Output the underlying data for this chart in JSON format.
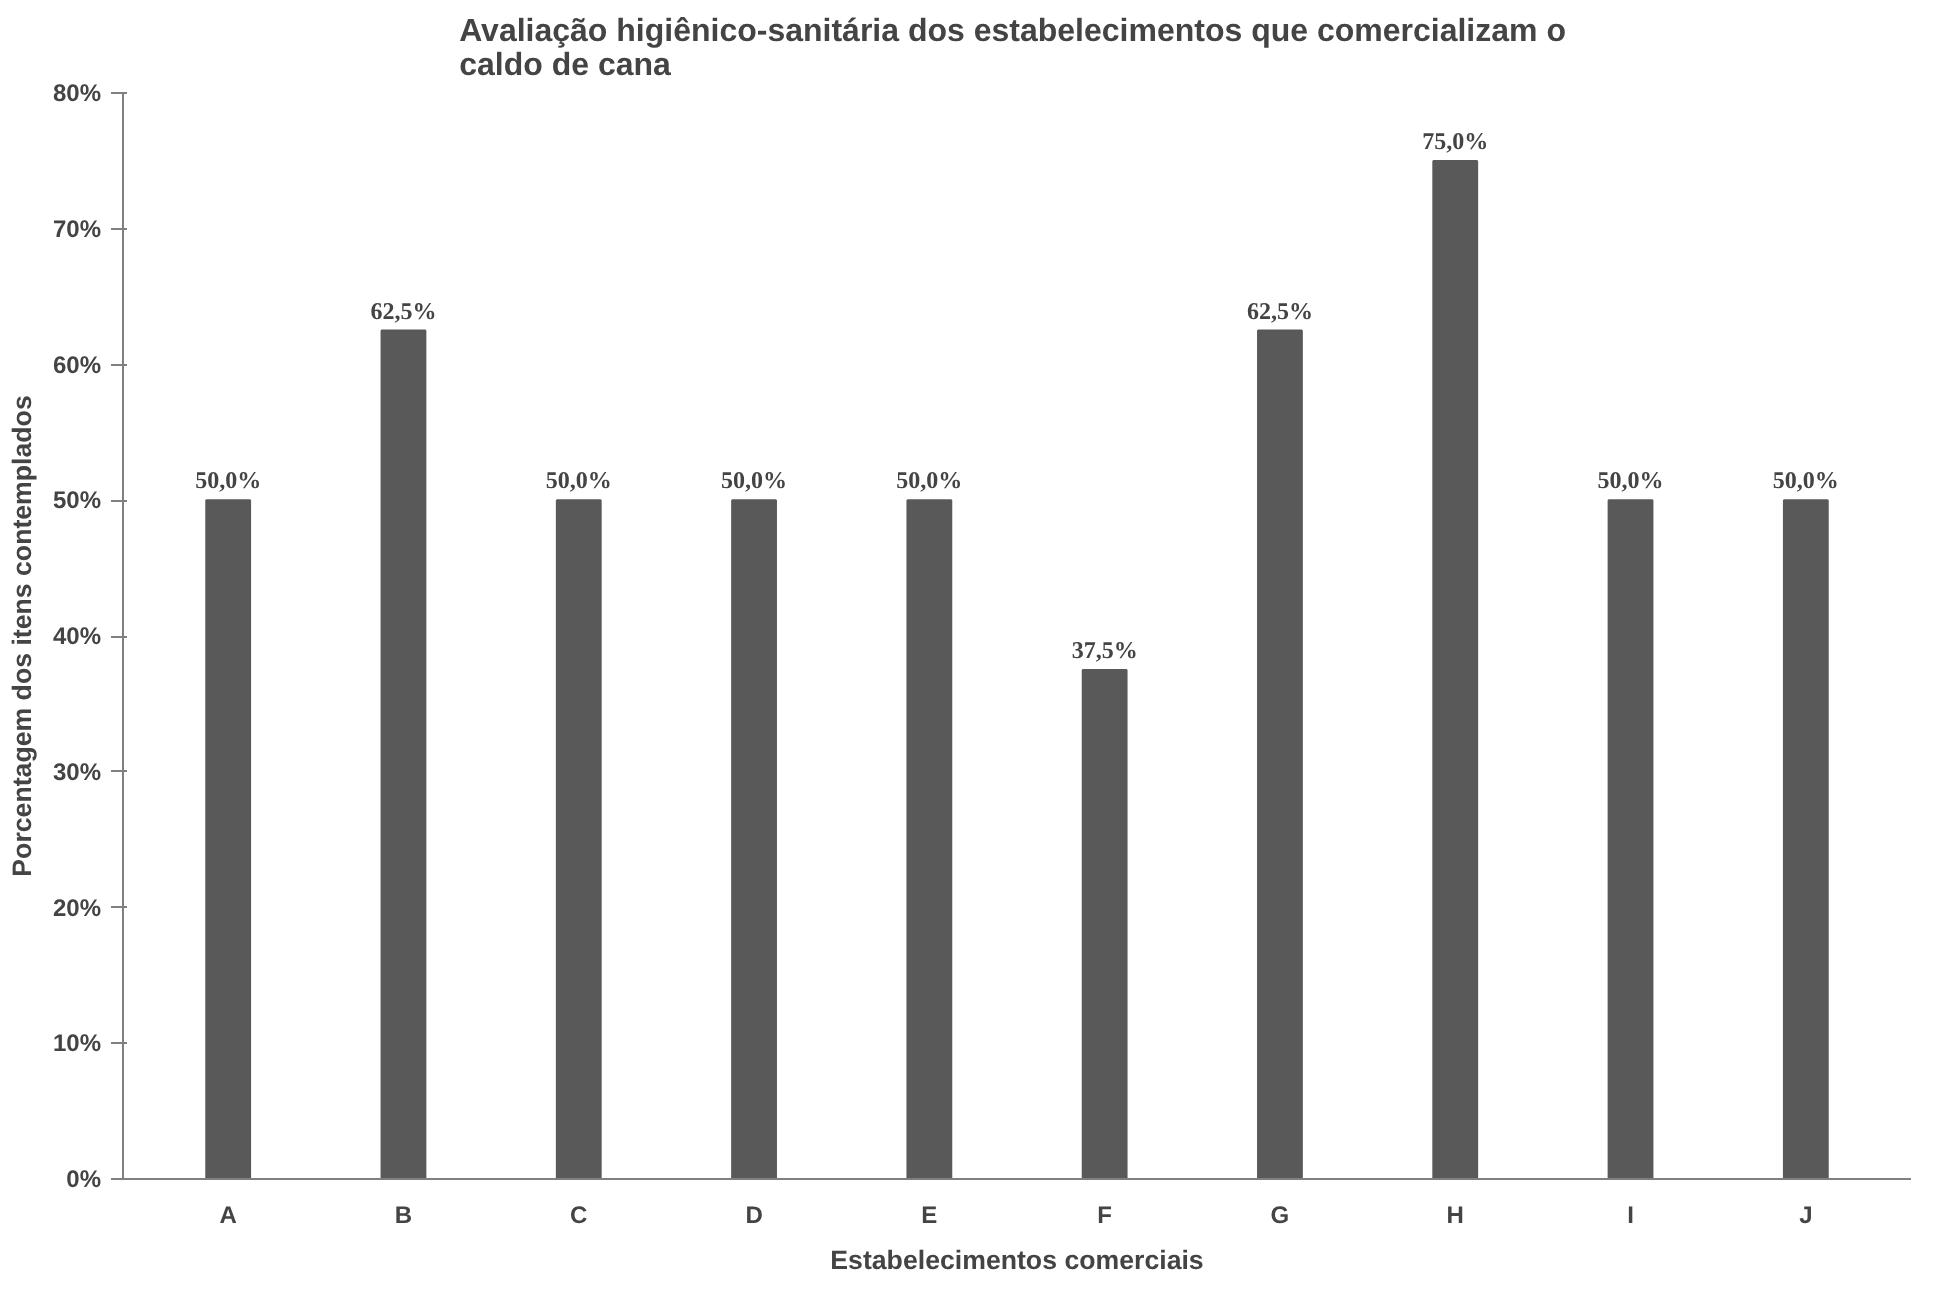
{
  "chart_data": {
    "type": "bar",
    "title": "Avaliação higiênico-sanitária  dos estabelecimentos que comercializam o\ncaldo de cana",
    "xlabel": "Estabelecimentos comerciais",
    "ylabel": "Porcentagem dos itens contemplados",
    "categories": [
      "A",
      "B",
      "C",
      "D",
      "E",
      "F",
      "G",
      "H",
      "I",
      "J"
    ],
    "values": [
      50,
      62.5,
      50,
      50,
      50,
      37.5,
      62.5,
      75,
      50,
      50
    ],
    "value_labels": [
      "50,0%",
      "62,5%",
      "50,0%",
      "50,0%",
      "50,0%",
      "37,5%",
      "62,5%",
      "75,0%",
      "50,0%",
      "50,0%"
    ],
    "color": "#595959",
    "ylim": [
      0,
      80
    ],
    "yticks": [
      {
        "value": 0,
        "label": "0%"
      },
      {
        "value": 10,
        "label": "10%"
      },
      {
        "value": 20,
        "label": "20%"
      },
      {
        "value": 30,
        "label": "30%"
      },
      {
        "value": 40,
        "label": "40%"
      },
      {
        "value": 50,
        "label": "50%"
      },
      {
        "value": 60,
        "label": "60%"
      },
      {
        "value": 70,
        "label": "70%"
      },
      {
        "value": 80,
        "label": "80%"
      }
    ],
    "grid": false
  }
}
